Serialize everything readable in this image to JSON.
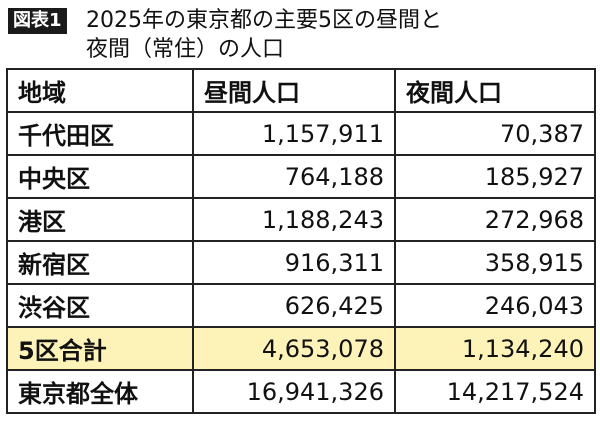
{
  "figure_label": "図表1",
  "title_line1": "2025年の東京都の主要5区の昼間と",
  "title_line2": "夜間（常住）の人口",
  "colors": {
    "highlight_row": "#fdf3b8",
    "badge_bg": "#1a1a1a",
    "border": "#222222"
  },
  "chart_data": {
    "type": "table",
    "title": "2025年の東京都の主要5区の昼間と夜間（常住）の人口",
    "columns": [
      "地域",
      "昼間人口",
      "夜間人口"
    ],
    "rows": [
      {
        "region": "千代田区",
        "day": "1,157,911",
        "night": "70,387"
      },
      {
        "region": "中央区",
        "day": "764,188",
        "night": "185,927"
      },
      {
        "region": "港区",
        "day": "1,188,243",
        "night": "272,968"
      },
      {
        "region": "新宿区",
        "day": "916,311",
        "night": "358,915"
      },
      {
        "region": "渋谷区",
        "day": "626,425",
        "night": "246,043"
      },
      {
        "region": "5区合計",
        "day": "4,653,078",
        "night": "1,134,240",
        "highlight": true
      },
      {
        "region": "東京都全体",
        "day": "16,941,326",
        "night": "14,217,524"
      }
    ]
  }
}
